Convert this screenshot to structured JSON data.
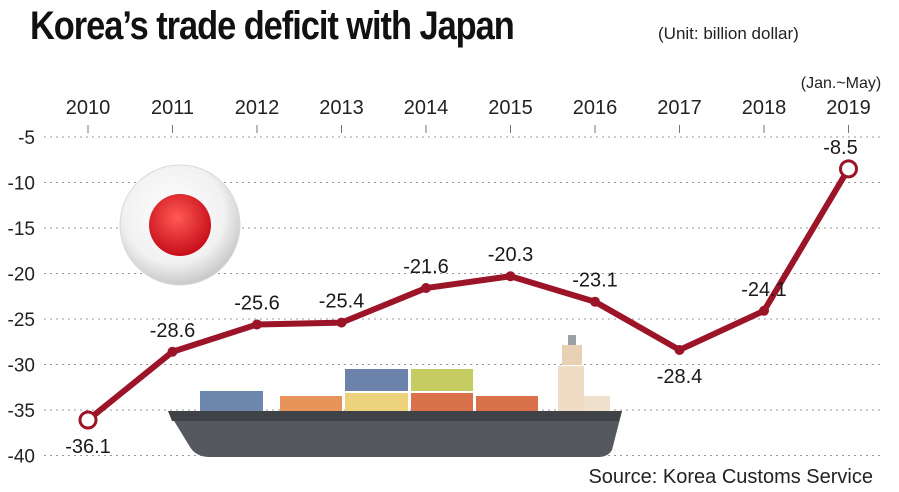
{
  "title": "Korea’s trade deficit with Japan",
  "unit": "(Unit: billion dollar)",
  "source": "Source: Korea Customs Service",
  "colors": {
    "line": "#9b1428",
    "grid": "#9a9a9a",
    "flag_red": "#d6171d"
  },
  "chart_data": {
    "type": "line",
    "title": "Korea’s trade deficit with Japan",
    "x": [
      "2010",
      "2011",
      "2012",
      "2013",
      "2014",
      "2015",
      "2016",
      "2017",
      "2018",
      "2019"
    ],
    "x_note": "(Jan.~May)",
    "series": [
      {
        "values": [
          -36.1,
          -28.6,
          -25.6,
          -25.4,
          -21.6,
          -20.3,
          -23.1,
          -28.4,
          -24.1,
          -8.5
        ]
      }
    ],
    "data_labels": [
      "-36.1",
      "-28.6",
      "-25.6",
      "-25.4",
      "-21.6",
      "-20.3",
      "-23.1",
      "-28.4",
      "-24.1",
      "-8.5"
    ],
    "yticks": [
      -5,
      -10,
      -15,
      -20,
      -25,
      -30,
      -35,
      -40
    ],
    "ylim": [
      -40,
      -5
    ],
    "grid": "horizontal dotted",
    "xaxis_position": "top"
  }
}
